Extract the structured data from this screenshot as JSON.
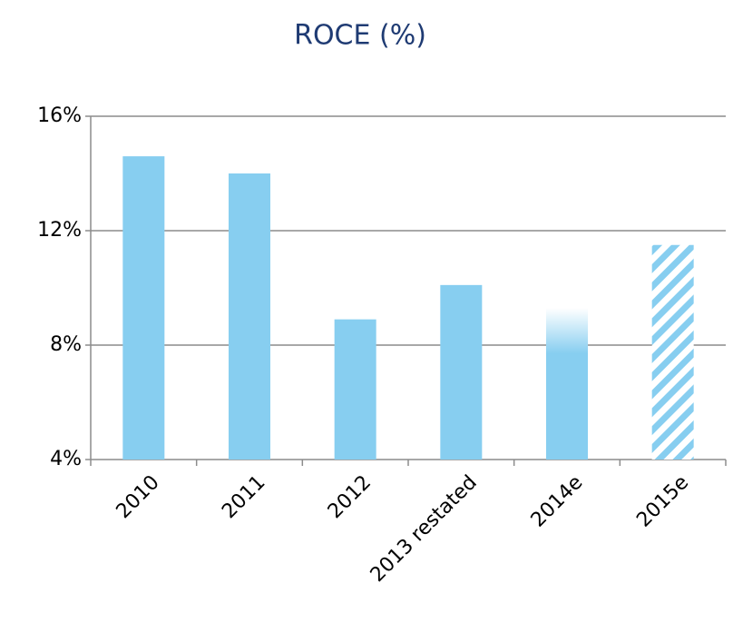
{
  "chart_data": {
    "type": "bar",
    "title": "ROCE (%)",
    "categories": [
      "2010",
      "2011",
      "2012",
      "2013 restated",
      "2014e",
      "2015e"
    ],
    "values": [
      14.6,
      14.0,
      8.9,
      10.1,
      9.3,
      11.5
    ],
    "color": "#87cef0",
    "fills": [
      "solid",
      "solid",
      "solid",
      "solid",
      "fade",
      "hatch"
    ],
    "ylim": [
      4,
      16
    ],
    "yticks": [
      {
        "value": 4,
        "label": "4%"
      },
      {
        "value": 8,
        "label": "8%"
      },
      {
        "value": 12,
        "label": "12%"
      },
      {
        "value": 16,
        "label": "16%"
      }
    ],
    "grid": true
  }
}
